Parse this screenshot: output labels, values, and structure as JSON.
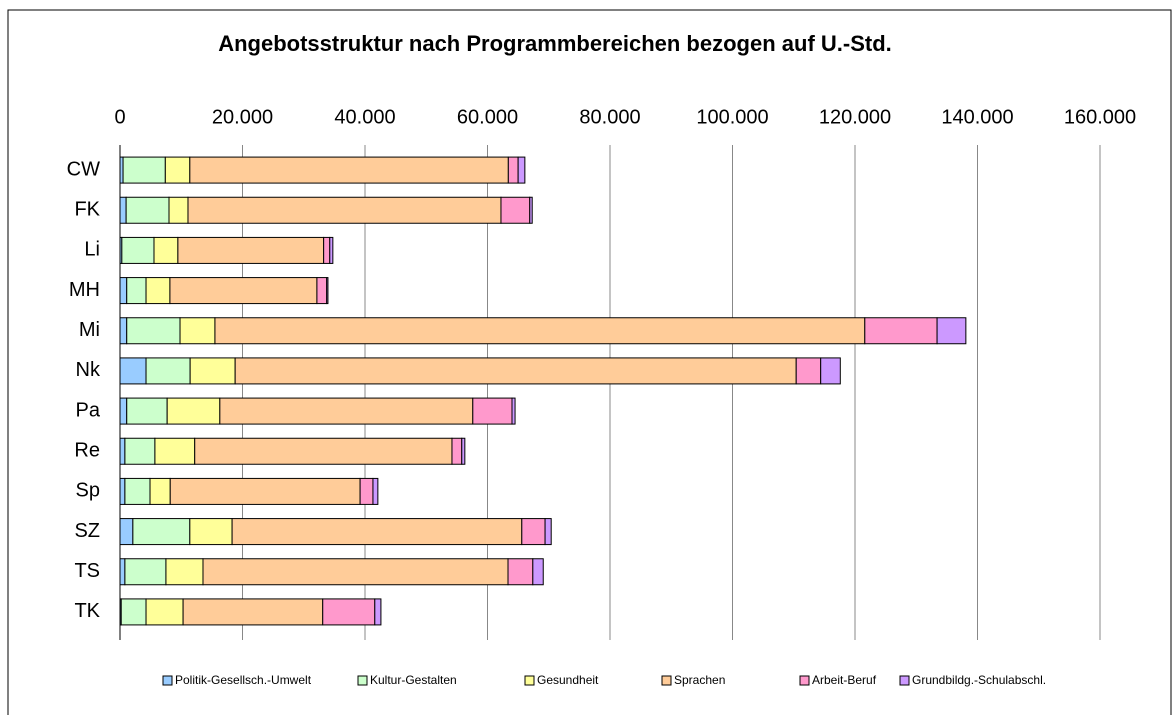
{
  "chart_data": {
    "type": "stacked-bar-horizontal",
    "title": "Angebotsstruktur nach Programmbereichen bezogen auf U.-Std.",
    "categories": [
      "CW",
      "FK",
      "Li",
      "MH",
      "Mi",
      "Nk",
      "Pa",
      "Re",
      "Sp",
      "SZ",
      "TS",
      "TK"
    ],
    "series": [
      {
        "name": "Politik-Gesellsch.-Umwelt",
        "color": "#99ccff",
        "values": [
          500,
          1000,
          300,
          1100,
          1100,
          4250,
          1100,
          800,
          800,
          2100,
          800,
          200
        ]
      },
      {
        "name": "Kultur-Gestalten",
        "color": "#ccffcc",
        "values": [
          6900,
          7000,
          5250,
          3150,
          8700,
          7200,
          6600,
          4900,
          4100,
          9300,
          6700,
          4050
        ]
      },
      {
        "name": "Gesundheit",
        "color": "#ffff99",
        "values": [
          4000,
          3100,
          3900,
          3900,
          5700,
          7350,
          8600,
          6500,
          3300,
          6900,
          6050,
          6050
        ]
      },
      {
        "name": "Sprachen",
        "color": "#ffcc99",
        "values": [
          52000,
          51100,
          23800,
          24000,
          106100,
          91600,
          41300,
          42000,
          31000,
          47300,
          49800,
          22800
        ]
      },
      {
        "name": "Arbeit-Beruf",
        "color": "#ff99cc",
        "values": [
          1600,
          4700,
          1000,
          1600,
          11800,
          4000,
          6400,
          1600,
          2100,
          3800,
          4050,
          8500
        ]
      },
      {
        "name": "Grundbildg.-Schulabschl.",
        "color": "#cc99ff",
        "values": [
          1100,
          400,
          500,
          200,
          4700,
          3200,
          500,
          500,
          800,
          1000,
          1700,
          1000
        ]
      }
    ],
    "xlim": [
      0,
      160000
    ],
    "xticks": [
      0,
      {
        "value": 20000,
        "label": "20.000"
      },
      {
        "value": 40000,
        "label": "40.000"
      },
      {
        "value": 60000,
        "label": "60.000"
      },
      {
        "value": 80000,
        "label": "80.000"
      },
      {
        "value": 100000,
        "label": "100.000"
      },
      {
        "value": 120000,
        "label": "120.000"
      },
      {
        "value": 140000,
        "label": "140.000"
      },
      {
        "value": 160000,
        "label": "160.000"
      }
    ],
    "grid": true,
    "legend": "bottom"
  }
}
